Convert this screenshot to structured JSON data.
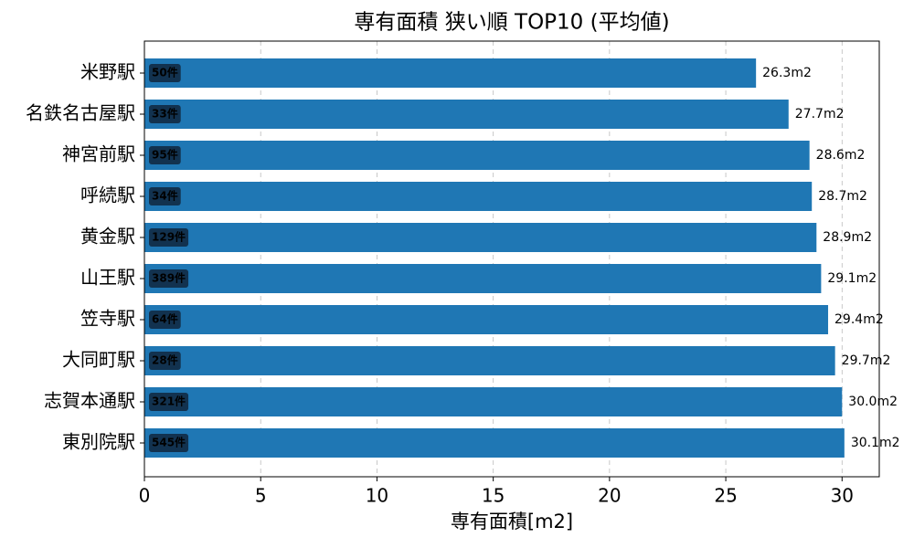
{
  "chart_data": {
    "type": "hbar",
    "title": "専有面積 狭い順 TOP10 (平均値)",
    "x_label": "専有面積[m2]",
    "categories": [
      "米野駅",
      "名鉄名古屋駅",
      "神宮前駅",
      "呼続駅",
      "黄金駅",
      "山王駅",
      "笠寺駅",
      "大同町駅",
      "志賀本通駅",
      "東別院駅"
    ],
    "values": [
      26.3,
      27.7,
      28.6,
      28.7,
      28.9,
      29.1,
      29.4,
      29.7,
      30.0,
      30.1
    ],
    "value_labels": [
      "26.3m2",
      "27.7m2",
      "28.6m2",
      "28.7m2",
      "28.9m2",
      "29.1m2",
      "29.4m2",
      "29.7m2",
      "30.0m2",
      "30.1m2"
    ],
    "count_labels": [
      "50件",
      "33件",
      "95件",
      "34件",
      "129件",
      "389件",
      "64件",
      "28件",
      "321件",
      "545件"
    ],
    "color": "#1f77b4",
    "xlim": [
      0,
      31.6
    ],
    "xticks": [
      0,
      5,
      10,
      15,
      20,
      25,
      30
    ],
    "grid": true
  }
}
